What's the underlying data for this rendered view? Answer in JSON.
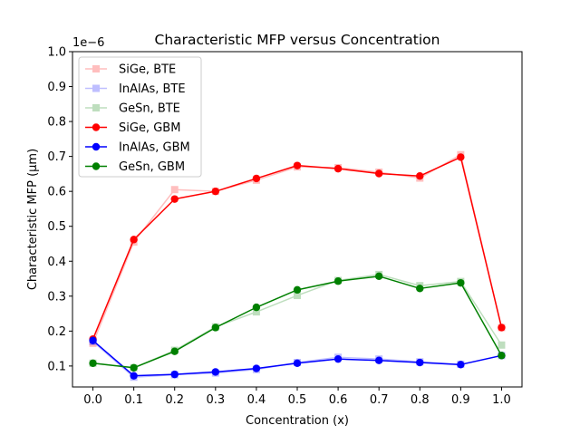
{
  "chart_data": {
    "type": "line",
    "title": "Characteristic MFP versus Concentration",
    "xlabel": "Concentration (x)",
    "ylabel": "Characteristic MFP (μm)",
    "offset_text": "1e−6",
    "x": [
      0.0,
      0.1,
      0.2,
      0.3,
      0.4,
      0.5,
      0.6,
      0.7,
      0.8,
      0.9,
      1.0
    ],
    "x_ticks": [
      "0.0",
      "0.1",
      "0.2",
      "0.3",
      "0.4",
      "0.5",
      "0.6",
      "0.7",
      "0.8",
      "0.9",
      "1.0"
    ],
    "y_ticks": [
      "0.1",
      "0.2",
      "0.3",
      "0.4",
      "0.5",
      "0.6",
      "0.7",
      "0.8",
      "0.9",
      "1.0"
    ],
    "y_tick_values": [
      0.1,
      0.2,
      0.3,
      0.4,
      0.5,
      0.6,
      0.7,
      0.8,
      0.9,
      1.0
    ],
    "xlim": [
      -0.05,
      1.05
    ],
    "ylim": [
      0.04,
      1.0
    ],
    "grid": false,
    "legend_position": "upper-left",
    "series": [
      {
        "name": "SiGe, BTE",
        "color": "#ff0000",
        "marker": "square",
        "alpha": 0.25,
        "values": [
          0.165,
          0.455,
          0.605,
          0.6,
          0.632,
          0.67,
          0.668,
          0.655,
          0.638,
          0.705,
          0.21
        ]
      },
      {
        "name": "InAlAs, BTE",
        "color": "#0000ff",
        "marker": "square",
        "alpha": 0.25,
        "values": [
          0.17,
          0.068,
          0.075,
          0.08,
          0.09,
          0.11,
          0.125,
          0.12,
          0.112,
          0.105,
          0.13
        ]
      },
      {
        "name": "GeSn, BTE",
        "color": "#008000",
        "marker": "square",
        "alpha": 0.25,
        "values": [
          0.108,
          0.095,
          0.145,
          0.212,
          0.255,
          0.302,
          0.345,
          0.362,
          0.33,
          0.342,
          0.16
        ]
      },
      {
        "name": "SiGe, GBM",
        "color": "#ff0000",
        "marker": "circle",
        "alpha": 1.0,
        "values": [
          0.177,
          0.462,
          0.578,
          0.6,
          0.637,
          0.674,
          0.665,
          0.651,
          0.644,
          0.698,
          0.21
        ]
      },
      {
        "name": "InAlAs, GBM",
        "color": "#0000ff",
        "marker": "circle",
        "alpha": 1.0,
        "values": [
          0.173,
          0.072,
          0.076,
          0.083,
          0.093,
          0.108,
          0.12,
          0.116,
          0.11,
          0.104,
          0.13
        ]
      },
      {
        "name": "GeSn, GBM",
        "color": "#008000",
        "marker": "circle",
        "alpha": 1.0,
        "values": [
          0.108,
          0.095,
          0.142,
          0.21,
          0.268,
          0.318,
          0.343,
          0.357,
          0.322,
          0.338,
          0.13
        ]
      }
    ]
  }
}
